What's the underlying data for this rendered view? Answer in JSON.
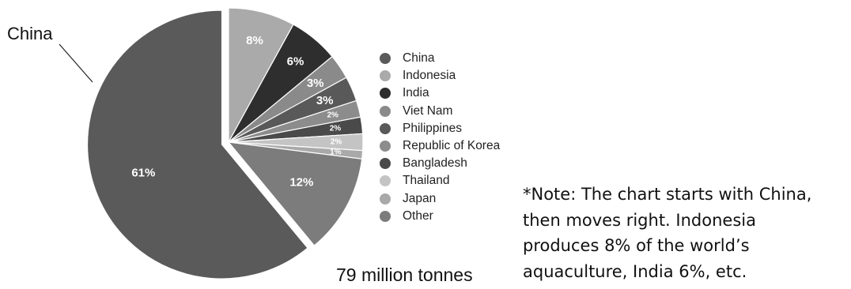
{
  "chart_data": {
    "type": "pie",
    "categories": [
      "China",
      "Indonesia",
      "India",
      "Viet Nam",
      "Philippines",
      "Republic of Korea",
      "Bangladesh",
      "Thailand",
      "Japan",
      "Other"
    ],
    "values": [
      61,
      8,
      6,
      3,
      3,
      2,
      2,
      2,
      1,
      12
    ],
    "slice_labels": [
      "61%",
      "8%",
      "6%",
      "3%",
      "3%",
      "2%",
      "2%",
      "2%",
      "1%",
      "12%"
    ],
    "colors": [
      "#5a5a5a",
      "#aaaaaa",
      "#2e2e2e",
      "#8a8a8a",
      "#595959",
      "#8c8c8c",
      "#4a4a4a",
      "#c4c4c4",
      "#a9a9a9",
      "#7c7c7c"
    ],
    "exploded_slice": "China",
    "legend_position": "right"
  },
  "callout_label": "China",
  "total_label": "79 million tonnes",
  "note_lines": [
    "*Note: The chart starts with China,",
    "then moves right. Indonesia",
    "produces 8% of the world’s",
    "aquaculture, India 6%, etc."
  ]
}
